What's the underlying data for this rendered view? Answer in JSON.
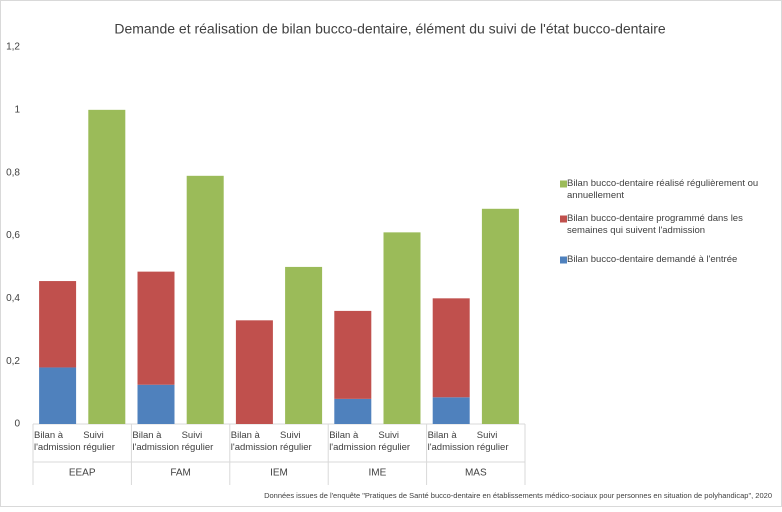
{
  "chart_data": {
    "type": "stacked-bar",
    "title": "Demande et réalisation de bilan bucco-dentaire, élément du suivi de l'état bucco-dentaire",
    "groups": [
      "EEAP",
      "FAM",
      "IEM",
      "IME",
      "MAS"
    ],
    "categories": [
      "Bilan à l'admission",
      "Suivi régulier",
      "Bilan à l'admission",
      "Suivi régulier",
      "Bilan à l'admission",
      "Suivi régulier",
      "Bilan à l'admission",
      "Suivi régulier",
      "Bilan à l'admission",
      "Suivi régulier"
    ],
    "series": [
      {
        "name": "Bilan bucco-dentaire demandé à l'entrée",
        "color": "#4f81bd",
        "values": [
          0.18,
          null,
          0.125,
          null,
          0,
          null,
          0.08,
          null,
          0.085,
          null
        ]
      },
      {
        "name": "Bilan bucco-dentaire programmé dans les semaines qui suivent l'admission",
        "color": "#c0504d",
        "values": [
          0.275,
          null,
          0.36,
          null,
          0.33,
          null,
          0.28,
          null,
          0.315,
          null
        ]
      },
      {
        "name": "Bilan bucco-dentaire réalisé régulièrement ou annuellement",
        "color": "#9bbb59",
        "values": [
          null,
          1.0,
          null,
          0.79,
          null,
          0.5,
          null,
          0.61,
          null,
          0.685
        ]
      }
    ],
    "ylim": [
      0,
      1.2
    ],
    "yticks": [
      0,
      {
        "value": 0.2,
        "label": "0,2"
      },
      {
        "value": 0.4,
        "label": "0,4"
      },
      {
        "value": 0.6,
        "label": "0,6"
      },
      {
        "value": 0.8,
        "label": "0,8"
      },
      1,
      {
        "value": 1.2,
        "label": "1,2"
      }
    ],
    "legend": "right",
    "source": "Données issues de l'enquête \"Pratiques de Santé bucco-dentaire en établissements médico-sociaux pour personnes en situation de polyhandicap\", 2020"
  }
}
